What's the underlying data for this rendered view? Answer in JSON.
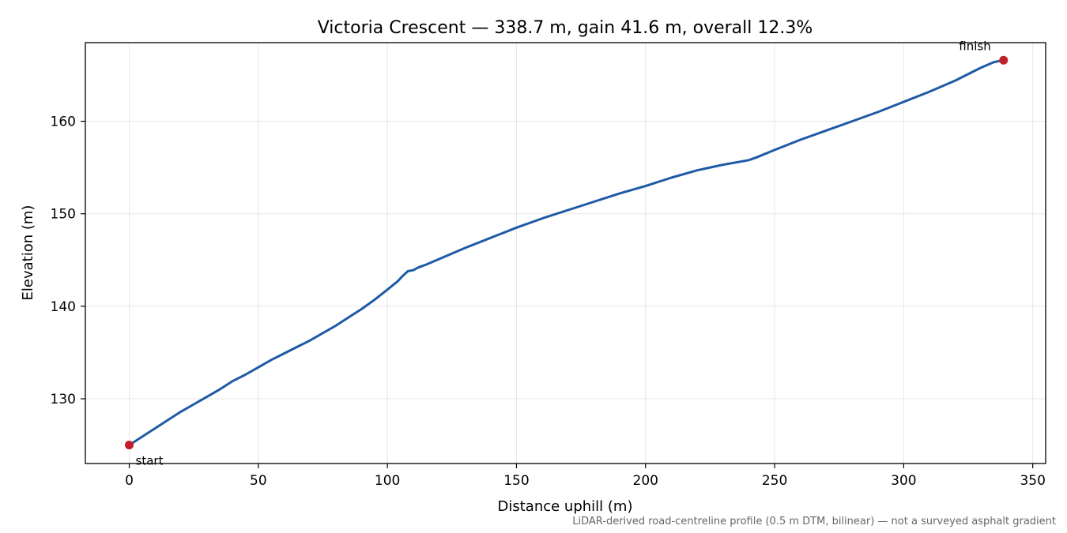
{
  "chart_data": {
    "type": "line",
    "title": "Victoria Crescent — 338.7 m, gain 41.6 m, overall 12.3%",
    "xlabel": "Distance uphill (m)",
    "ylabel": "Elevation (m)",
    "xlim": [
      -17,
      355
    ],
    "ylim": [
      123,
      168.5
    ],
    "xticks": [
      0,
      50,
      100,
      150,
      200,
      250,
      300,
      350
    ],
    "yticks": [
      130,
      140,
      150,
      160
    ],
    "grid": true,
    "line_color": "#1f5aa6",
    "marker_color": "#c0202a",
    "series": [
      {
        "x": [
          0,
          5,
          10,
          15,
          20,
          25,
          30,
          35,
          40,
          45,
          50,
          55,
          60,
          65,
          70,
          75,
          80,
          85,
          90,
          95,
          100,
          104,
          106,
          108,
          110,
          112,
          115,
          120,
          130,
          140,
          150,
          160,
          170,
          180,
          190,
          200,
          210,
          220,
          230,
          240,
          243,
          250,
          260,
          270,
          280,
          290,
          300,
          310,
          320,
          330,
          335,
          338.7
        ],
        "y": [
          125.0,
          125.9,
          126.8,
          127.7,
          128.6,
          129.4,
          130.2,
          131.0,
          131.9,
          132.6,
          133.4,
          134.2,
          134.9,
          135.6,
          136.3,
          137.1,
          137.9,
          138.8,
          139.7,
          140.7,
          141.8,
          142.7,
          143.3,
          143.8,
          143.9,
          144.2,
          144.5,
          145.1,
          146.3,
          147.4,
          148.5,
          149.5,
          150.4,
          151.3,
          152.2,
          153.0,
          153.9,
          154.7,
          155.3,
          155.8,
          156.1,
          156.9,
          158.0,
          159.0,
          160.0,
          161.0,
          162.1,
          163.2,
          164.4,
          165.8,
          166.4,
          166.6
        ]
      }
    ],
    "annotations": [
      {
        "text": "start",
        "x": 0,
        "y": 125.0
      },
      {
        "text": "finish",
        "x": 338.7,
        "y": 166.6
      }
    ],
    "footnote": "LiDAR-derived road-centreline profile (0.5 m DTM, bilinear) — not a surveyed asphalt gradient"
  }
}
